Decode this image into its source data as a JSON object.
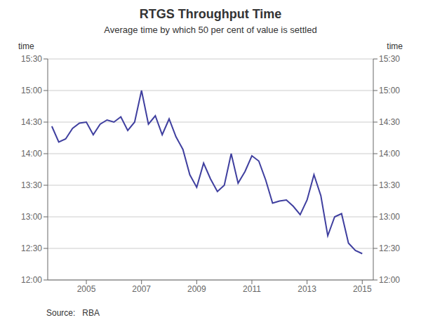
{
  "chart_data": {
    "type": "line",
    "title": "RTGS Throughput Time",
    "subtitle": "Average time by which 50 per cent of value is settled",
    "ylabel": "time",
    "y2label": "time",
    "annotations": [
      "Source:   RBA"
    ],
    "x": [
      2003.75,
      2004.0,
      2004.25,
      2004.5,
      2004.75,
      2005.0,
      2005.25,
      2005.5,
      2005.75,
      2006.0,
      2006.25,
      2006.5,
      2006.75,
      2007.0,
      2007.25,
      2007.5,
      2007.75,
      2008.0,
      2008.25,
      2008.5,
      2008.75,
      2009.0,
      2009.25,
      2009.5,
      2009.75,
      2010.0,
      2010.25,
      2010.5,
      2010.75,
      2011.0,
      2011.25,
      2011.5,
      2011.75,
      2012.0,
      2012.25,
      2012.5,
      2012.75,
      2013.0,
      2013.25,
      2013.5,
      2013.75,
      2014.0,
      2014.25,
      2014.5,
      2014.75,
      2015.0
    ],
    "values": [
      866,
      851,
      854,
      864,
      869,
      870,
      858,
      868,
      872,
      870,
      875,
      862,
      870,
      900,
      868,
      876,
      858,
      873,
      856,
      844,
      820,
      808,
      831,
      816,
      804,
      810,
      840,
      812,
      823,
      838,
      833,
      815,
      793,
      795,
      796,
      790,
      782,
      796,
      820,
      800,
      762,
      780,
      783,
      755,
      748,
      745
    ],
    "color": "#3F3F9F",
    "xlim": [
      2003.6,
      2015.4
    ],
    "xticks": [
      2005,
      2007,
      2009,
      2011,
      2013,
      2015
    ],
    "ylim": [
      720,
      930
    ],
    "yticks": [
      {
        "value": 720,
        "label": "12:00"
      },
      {
        "value": 750,
        "label": "12:30"
      },
      {
        "value": 780,
        "label": "13:00"
      },
      {
        "value": 810,
        "label": "13:30"
      },
      {
        "value": 840,
        "label": "14:00"
      },
      {
        "value": 870,
        "label": "14:30"
      },
      {
        "value": 900,
        "label": "15:00"
      },
      {
        "value": 930,
        "label": "15:30"
      }
    ],
    "y2lim": [
      720,
      930
    ],
    "y2ticks": [
      {
        "value": 720,
        "label": "12:00"
      },
      {
        "value": 750,
        "label": "12:30"
      },
      {
        "value": 780,
        "label": "13:00"
      },
      {
        "value": 810,
        "label": "13:30"
      },
      {
        "value": 840,
        "label": "14:00"
      },
      {
        "value": 870,
        "label": "14:30"
      },
      {
        "value": 900,
        "label": "15:00"
      },
      {
        "value": 930,
        "label": "15:30"
      }
    ],
    "grid": "y"
  }
}
